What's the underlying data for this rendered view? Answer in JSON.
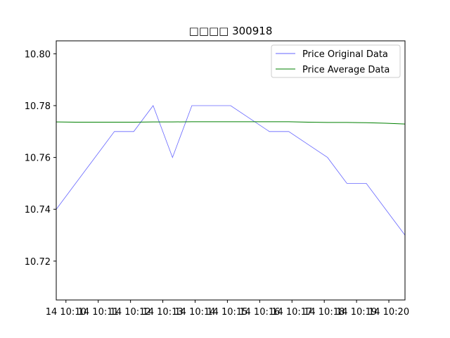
{
  "chart_data": {
    "type": "line",
    "title": "□□□□  300918",
    "xlabel": "",
    "ylabel": "",
    "ylim": [
      10.705,
      10.805
    ],
    "y_ticks": [
      10.72,
      10.74,
      10.76,
      10.78,
      10.8
    ],
    "x_tick_labels": [
      "14 10:10",
      "14 10:11",
      "14 10:12",
      "14 10:13",
      "14 10:14",
      "14 10:15",
      "14 10:16",
      "14 10:17",
      "14 10:18",
      "14 10:19",
      "14 10:20"
    ],
    "legend_position": "top-right",
    "grid": false,
    "series": [
      {
        "name": "Price Original Data",
        "color": "#0000ff",
        "x": [
          0,
          1,
          2,
          3,
          4,
          5,
          6,
          7,
          8,
          9,
          10,
          11,
          12,
          13,
          14,
          15,
          16,
          17,
          18
        ],
        "values": [
          10.74,
          10.75,
          10.76,
          10.77,
          10.77,
          10.78,
          10.76,
          10.78,
          10.78,
          10.78,
          10.775,
          10.77,
          10.77,
          10.765,
          10.76,
          10.75,
          10.75,
          10.74,
          10.73
        ]
      },
      {
        "name": "Price Average Data",
        "color": "#008000",
        "x": [
          0,
          1,
          2,
          3,
          4,
          5,
          6,
          7,
          8,
          9,
          10,
          11,
          12,
          13,
          14,
          15,
          16,
          17,
          18
        ],
        "values": [
          10.7737,
          10.7736,
          10.7736,
          10.7736,
          10.7736,
          10.7737,
          10.7737,
          10.7738,
          10.7738,
          10.7738,
          10.7738,
          10.7738,
          10.7738,
          10.7736,
          10.7735,
          10.7735,
          10.7734,
          10.7732,
          10.7729
        ]
      }
    ]
  }
}
